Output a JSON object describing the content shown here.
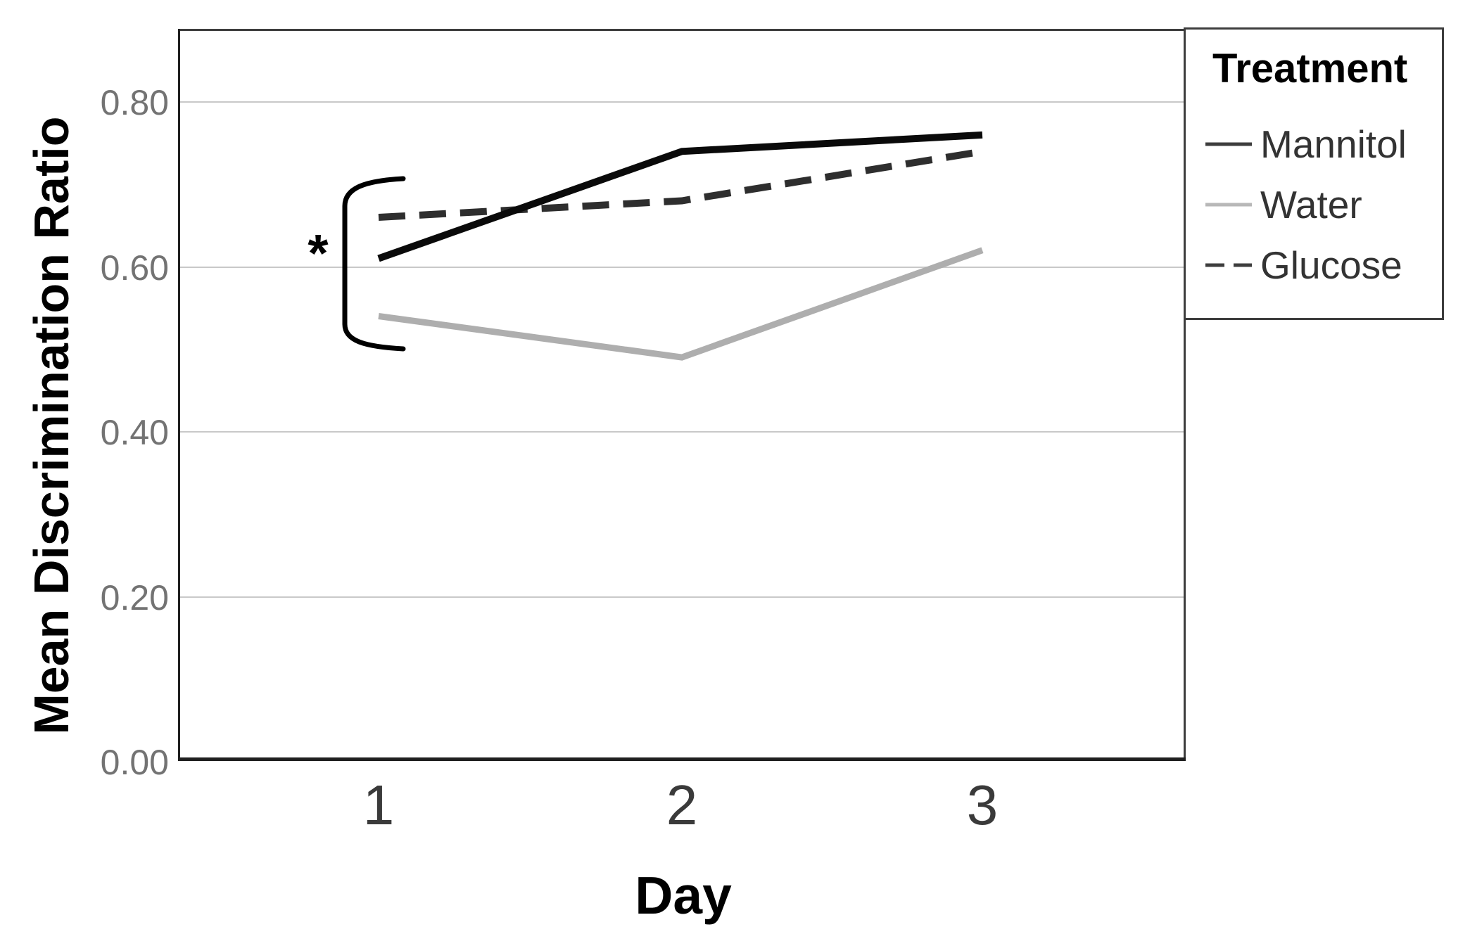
{
  "chart_data": {
    "type": "line",
    "title": "",
    "xlabel": "Day",
    "ylabel": "Mean Discrimination Ratio",
    "x_categories": [
      "1",
      "2",
      "3"
    ],
    "series": [
      {
        "name": "Mannitol",
        "values": [
          0.61,
          0.74,
          0.76
        ],
        "color": "#0a0a0a",
        "line_style": "solid",
        "line_width": 10
      },
      {
        "name": "Water",
        "values": [
          0.54,
          0.49,
          0.62
        ],
        "color": "#aeaeae",
        "line_style": "solid",
        "line_width": 9
      },
      {
        "name": "Glucose",
        "values": [
          0.66,
          0.68,
          0.74
        ],
        "color": "#2e2e2e",
        "line_style": "dashed",
        "line_width": 10
      }
    ],
    "y_ticks": [
      "0.80",
      "0.60",
      "0.40",
      "0.20",
      "0.00"
    ],
    "y_tick_values": [
      0.8,
      0.6,
      0.4,
      0.2,
      0.0
    ],
    "ylim": [
      0.0,
      0.89
    ],
    "grid": "horizontal",
    "legend_position": "outside-top-right",
    "annotation": {
      "symbol": "*",
      "meaning": "significance bracket spanning the three treatment lines at Day 1",
      "x_category": "1",
      "y_top": 0.7,
      "y_bottom": 0.51
    }
  },
  "legend": {
    "title": "Treatment",
    "items": [
      {
        "label": "Mannitol",
        "sample_color": "#3d3d3d",
        "sample_dashed": false
      },
      {
        "label": "Water",
        "sample_color": "#b8b8b8",
        "sample_dashed": false
      },
      {
        "label": "Glucose",
        "sample_color": "#3d3d3d",
        "sample_dashed": true
      }
    ]
  },
  "colors": {
    "background": "#ffffff",
    "grid_line": "#c9c9c9",
    "plot_border": "#3d3d3d",
    "axis_line": "#1f1f1f",
    "x_tick_text": "#3a3a3a",
    "y_tick_text": "#737373",
    "annotation": "#000000"
  }
}
